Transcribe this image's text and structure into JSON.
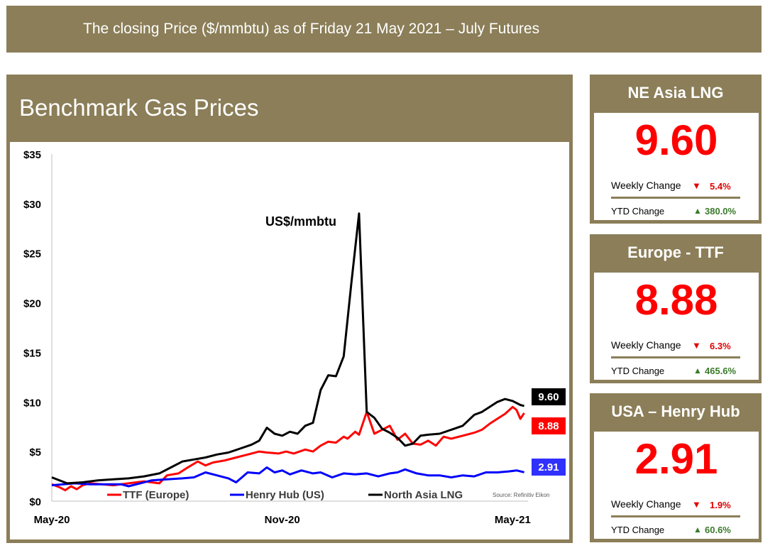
{
  "banner": {
    "text": "The closing Price ($/mmbtu) as of  Friday 21 May 2021 – July Futures"
  },
  "chart_panel": {
    "title": "Benchmark Gas Prices"
  },
  "chart_data": {
    "type": "line",
    "annotation": "US$/mmbtu",
    "source": "Source: Refinitiv Eikon",
    "ylim": [
      0,
      35
    ],
    "yticks": [
      "$0",
      "$5",
      "$10",
      "$15",
      "$20",
      "$25",
      "$30",
      "$35"
    ],
    "ytick_values": [
      0,
      5,
      10,
      15,
      20,
      25,
      30,
      35
    ],
    "xlim": [
      0,
      12.4
    ],
    "xticks": [
      "May-20",
      "Nov-20",
      "May-21"
    ],
    "xtick_values": [
      0,
      6,
      12
    ],
    "grid": false,
    "legend_position": "bottom",
    "series": [
      {
        "name": "TTF (Europe)",
        "color": "#ff0000",
        "end_label": "8.88",
        "x": [
          0,
          0.2,
          0.35,
          0.5,
          0.65,
          0.8,
          1.0,
          1.3,
          1.6,
          2.0,
          2.4,
          2.8,
          3.0,
          3.3,
          3.5,
          3.8,
          4.0,
          4.2,
          4.5,
          4.8,
          5.0,
          5.2,
          5.4,
          5.6,
          5.9,
          6.1,
          6.3,
          6.6,
          6.8,
          7.0,
          7.2,
          7.4,
          7.6,
          7.7,
          7.9,
          8.0,
          8.2,
          8.4,
          8.6,
          8.8,
          9.0,
          9.2,
          9.4,
          9.6,
          9.8,
          10.0,
          10.2,
          10.4,
          10.7,
          11.0,
          11.2,
          11.4,
          11.6,
          11.8,
          12.0,
          12.1,
          12.2,
          12.3
        ],
        "values": [
          1.7,
          1.4,
          1.1,
          1.5,
          1.2,
          1.6,
          1.8,
          1.7,
          1.6,
          1.8,
          2.0,
          1.8,
          2.6,
          2.8,
          3.3,
          4.0,
          3.6,
          3.9,
          4.1,
          4.4,
          4.6,
          4.8,
          5.0,
          4.9,
          4.8,
          5.0,
          4.8,
          5.2,
          5.0,
          5.6,
          6.0,
          5.9,
          6.5,
          6.3,
          7.0,
          6.7,
          9.0,
          6.8,
          7.2,
          7.6,
          6.2,
          6.8,
          5.8,
          5.7,
          6.1,
          5.6,
          6.5,
          6.3,
          6.6,
          6.9,
          7.2,
          7.8,
          8.3,
          8.8,
          9.5,
          9.2,
          8.3,
          8.88
        ]
      },
      {
        "name": "Henry Hub (US)",
        "color": "#0000ff",
        "end_label": "2.91",
        "x": [
          0,
          0.3,
          0.6,
          1.0,
          1.4,
          1.8,
          2.0,
          2.3,
          2.6,
          3.0,
          3.4,
          3.7,
          4.0,
          4.3,
          4.6,
          4.8,
          5.1,
          5.4,
          5.6,
          5.8,
          6.0,
          6.2,
          6.5,
          6.8,
          7.0,
          7.3,
          7.6,
          7.9,
          8.2,
          8.5,
          8.8,
          9.0,
          9.2,
          9.5,
          9.8,
          10.1,
          10.4,
          10.7,
          11.0,
          11.3,
          11.6,
          11.9,
          12.1,
          12.3
        ],
        "values": [
          1.6,
          1.7,
          1.8,
          1.7,
          1.7,
          1.7,
          1.5,
          1.8,
          2.1,
          2.2,
          2.3,
          2.4,
          2.9,
          2.6,
          2.3,
          1.9,
          2.9,
          2.8,
          3.4,
          2.9,
          3.1,
          2.7,
          3.1,
          2.8,
          2.9,
          2.4,
          2.8,
          2.7,
          2.8,
          2.5,
          2.8,
          2.9,
          3.2,
          2.8,
          2.6,
          2.6,
          2.4,
          2.6,
          2.5,
          2.9,
          2.9,
          3.0,
          3.1,
          2.91
        ]
      },
      {
        "name": "North Asia LNG",
        "color": "#000000",
        "end_label": "9.60",
        "x": [
          0,
          0.4,
          0.8,
          1.2,
          1.6,
          2.0,
          2.4,
          2.8,
          3.1,
          3.4,
          3.7,
          4.0,
          4.3,
          4.6,
          4.9,
          5.2,
          5.4,
          5.6,
          5.8,
          6.0,
          6.2,
          6.4,
          6.6,
          6.8,
          7.0,
          7.2,
          7.4,
          7.6,
          7.8,
          8.0,
          8.2,
          8.4,
          8.6,
          8.8,
          9.0,
          9.2,
          9.4,
          9.6,
          9.8,
          10.1,
          10.4,
          10.7,
          11.0,
          11.2,
          11.4,
          11.6,
          11.8,
          12.0,
          12.2,
          12.3
        ],
        "values": [
          2.4,
          1.8,
          1.9,
          2.1,
          2.2,
          2.3,
          2.5,
          2.8,
          3.4,
          4.0,
          4.2,
          4.4,
          4.7,
          4.9,
          5.3,
          5.7,
          6.1,
          7.4,
          6.8,
          6.6,
          7.0,
          6.8,
          7.6,
          7.9,
          11.2,
          12.7,
          12.6,
          14.6,
          22.0,
          29.0,
          9.0,
          8.4,
          7.3,
          6.9,
          6.4,
          5.6,
          5.8,
          6.6,
          6.7,
          6.8,
          7.2,
          7.6,
          8.7,
          9.0,
          9.5,
          10.0,
          10.3,
          10.1,
          9.7,
          9.6
        ]
      }
    ]
  },
  "cards": [
    {
      "title": "NE Asia LNG",
      "value": "9.60",
      "weekly_label": "Weekly Change",
      "weekly_arrow": "▼",
      "weekly_change": "5.4%",
      "ytd_label": "YTD Change",
      "ytd_arrow": "▲",
      "ytd_change": "380.0%"
    },
    {
      "title": "Europe - TTF",
      "value": "8.88",
      "weekly_label": "Weekly Change",
      "weekly_arrow": "▼",
      "weekly_change": "6.3%",
      "ytd_label": "YTD Change",
      "ytd_arrow": "▲",
      "ytd_change": "465.6%"
    },
    {
      "title": "USA – Henry Hub",
      "value": "2.91",
      "weekly_label": "Weekly Change",
      "weekly_arrow": "▼",
      "weekly_change": "1.9%",
      "ytd_label": "YTD Change",
      "ytd_arrow": "▲",
      "ytd_change": "60.6%"
    }
  ]
}
